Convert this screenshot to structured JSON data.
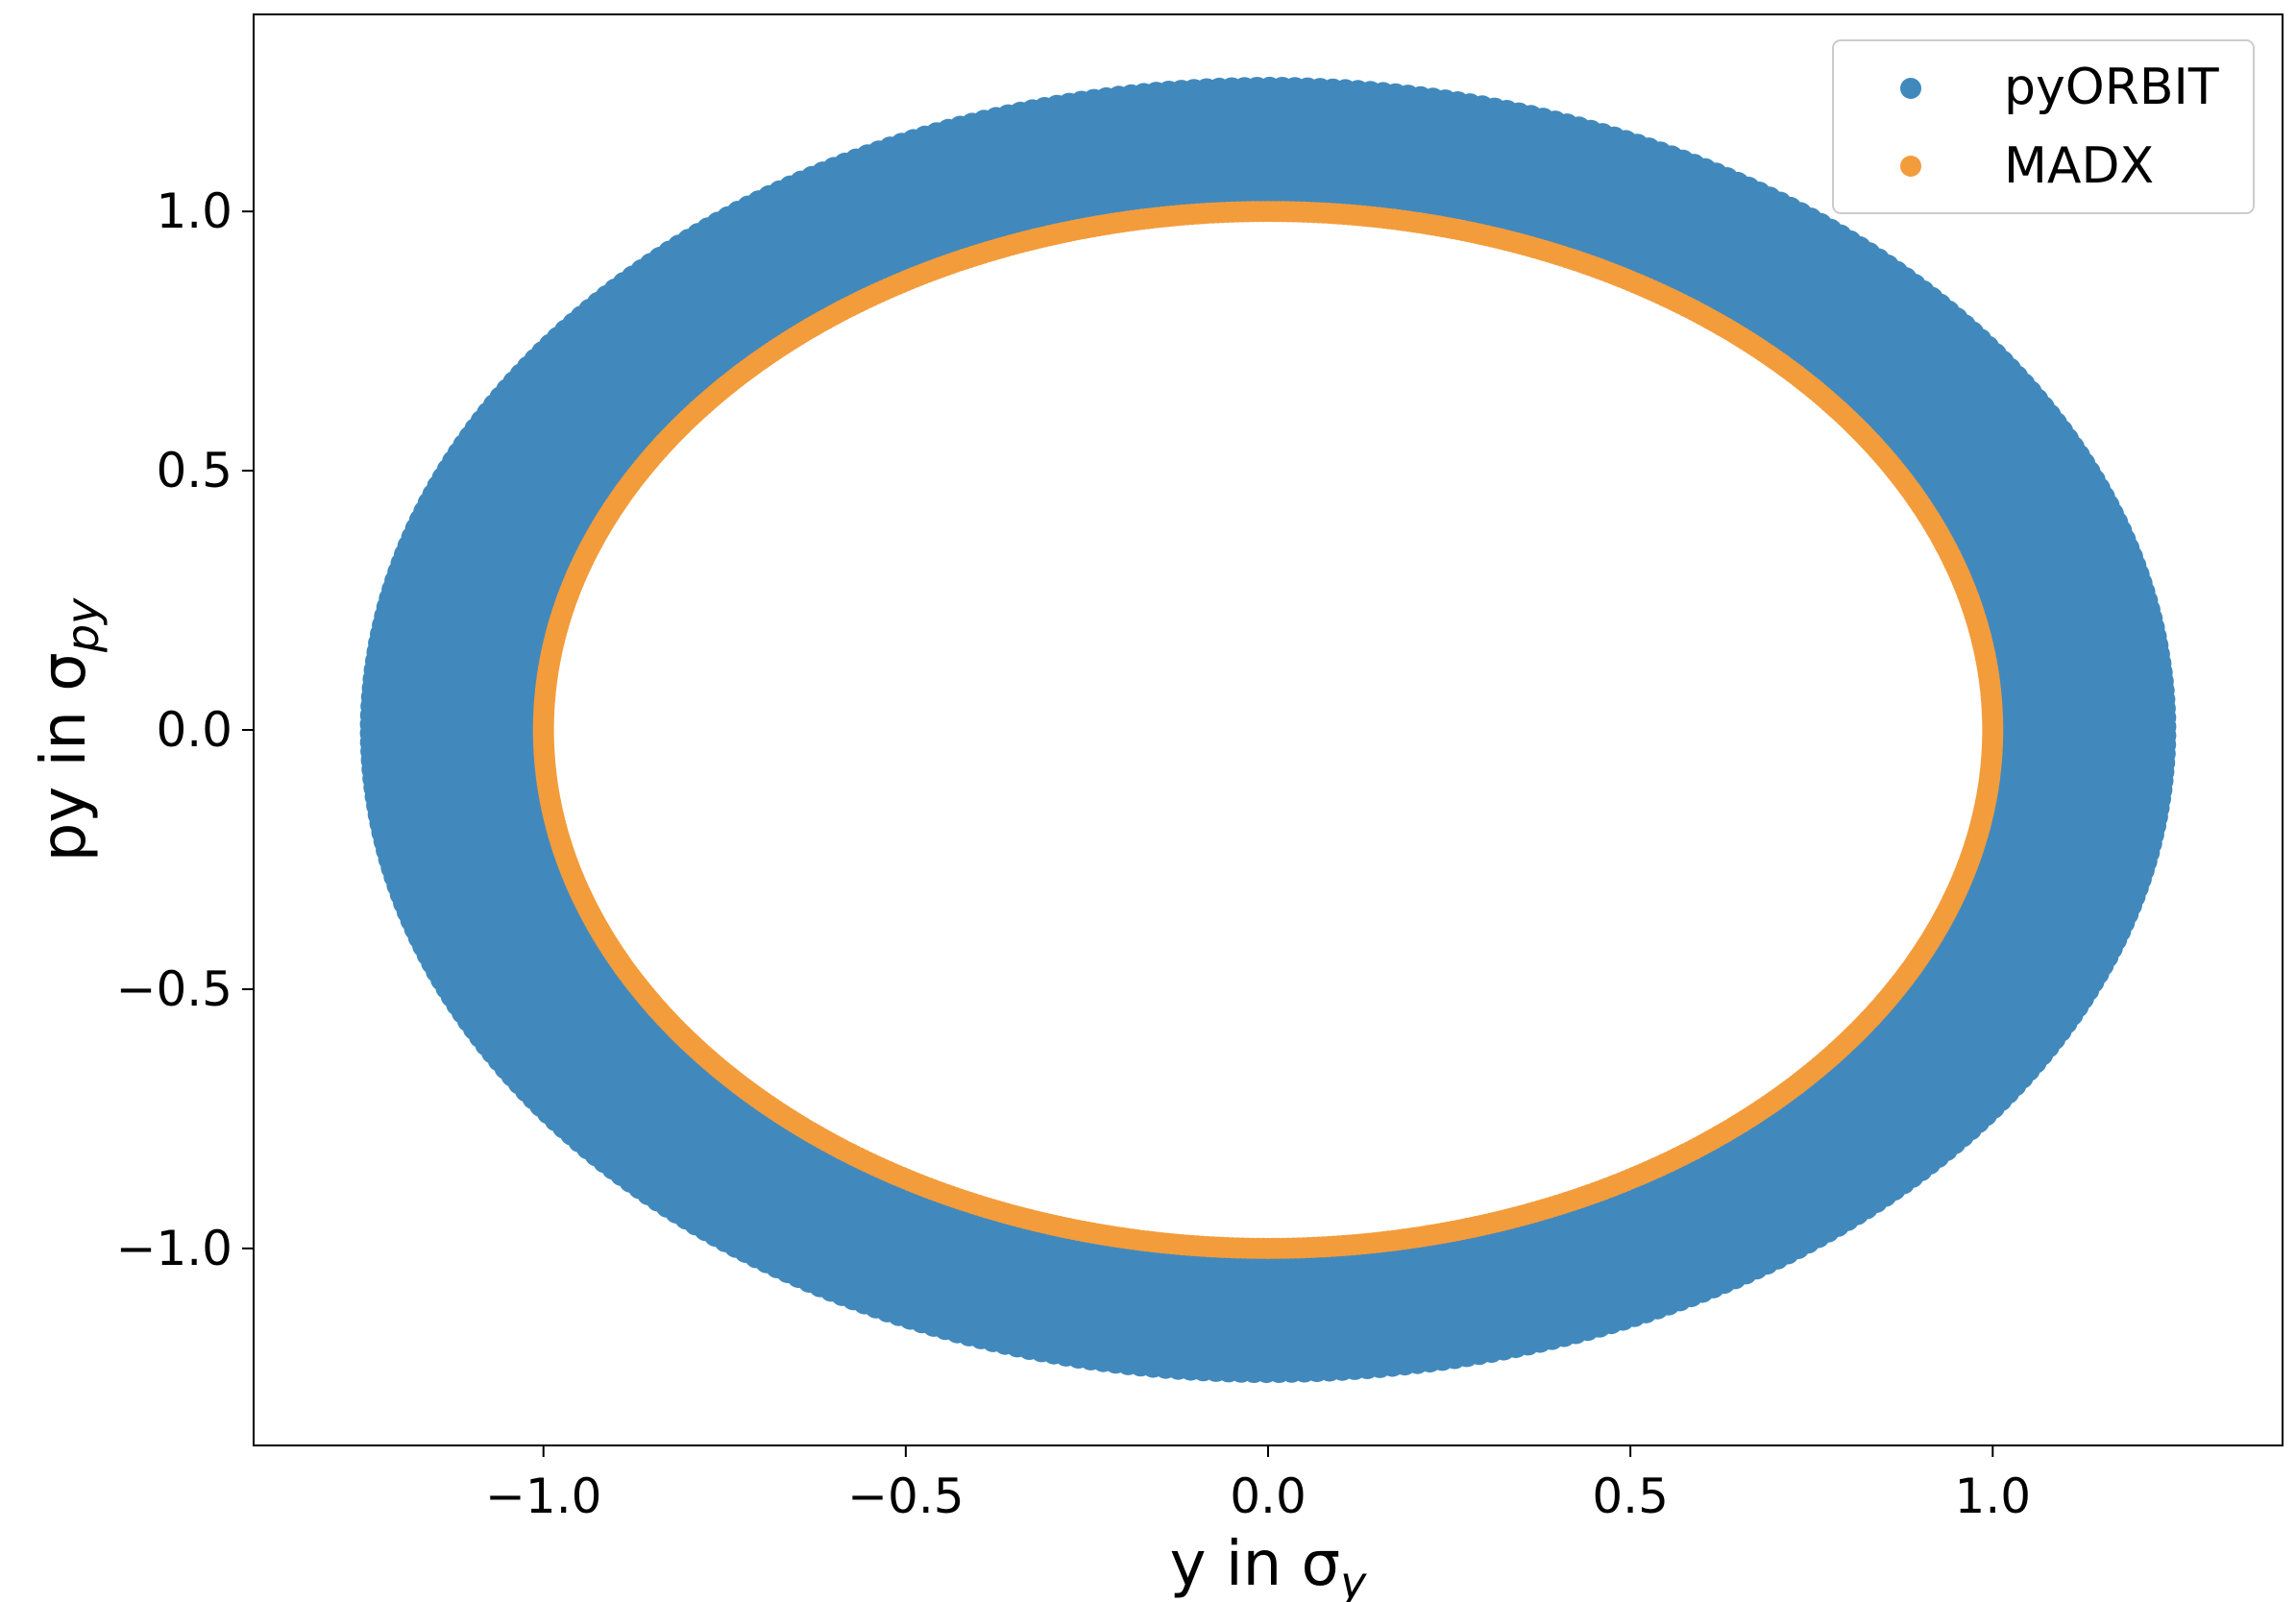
{
  "chart_data": {
    "type": "scatter",
    "xlabel": "y in σ",
    "xlabel_sub": "y",
    "ylabel": "py in σ",
    "ylabel_sub": "py",
    "xlim": [
      -1.4,
      1.4
    ],
    "ylim": [
      -1.38,
      1.38
    ],
    "x_ticks": [
      -1.0,
      -0.5,
      0.0,
      0.5,
      1.0
    ],
    "x_tick_labels": [
      "−1.0",
      "−0.5",
      "0.0",
      "0.5",
      "1.0"
    ],
    "y_ticks": [
      -1.0,
      -0.5,
      0.0,
      0.5,
      1.0
    ],
    "y_tick_labels": [
      "−1.0",
      "−0.5",
      "0.0",
      "0.5",
      "1.0"
    ],
    "grid": false,
    "legend_position": "top-right",
    "series": [
      {
        "name": "pyORBIT",
        "color": "#4189bd",
        "shape": "annulus",
        "radius_inner": 1.0,
        "radius_outer": 1.25,
        "center": [
          0.0,
          0.0
        ]
      },
      {
        "name": "MADX",
        "color": "#f39c3c",
        "shape": "circle",
        "radius": 1.0,
        "center": [
          0.0,
          0.0
        ]
      }
    ]
  }
}
